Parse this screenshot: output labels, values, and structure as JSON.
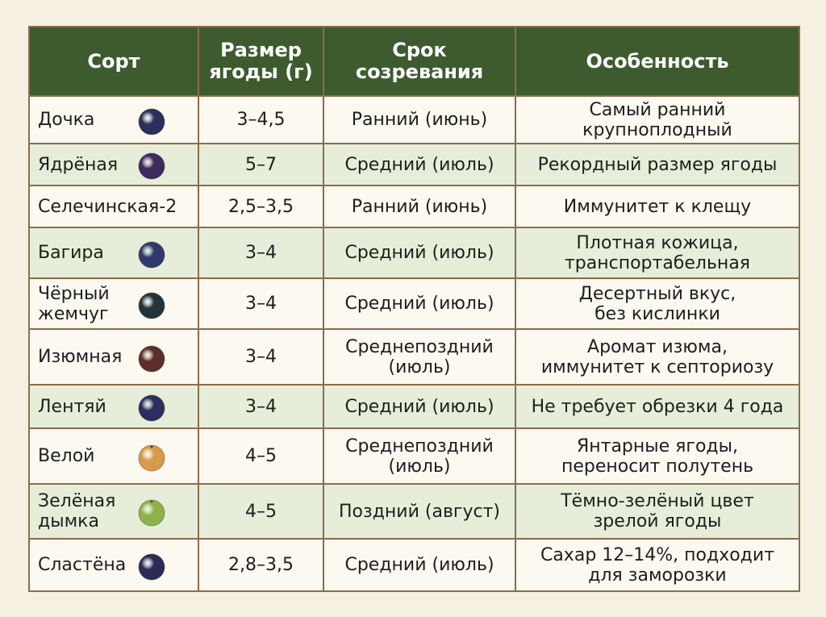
{
  "table": {
    "header": [
      "Сорт",
      "Размер\nягоды (г)",
      "Срок\nсозревания",
      "Особенность"
    ],
    "rows": [
      [
        "Дочка",
        "3–4,5",
        "Ранний (июнь)",
        "Самый ранний\nкрупноплодный"
      ],
      [
        "Ядрёная",
        "5–7",
        "Средний (июль)",
        "Рекордный размер ягоды"
      ],
      [
        "Селечинская-2",
        "2,5–3,5",
        "Ранний (июнь)",
        "Иммунитет к клещу"
      ],
      [
        "Багира",
        "3–4",
        "Средний (июль)",
        "Плотная кожица,\nтранспортабельная"
      ],
      [
        "Чёрный\nжемчуг",
        "3–4",
        "Средний (июль)",
        "Десертный вкус,\nбез кислинки"
      ],
      [
        "Изюмная",
        "3–4",
        "Среднепоздний\n(июль)",
        "Аромат изюма,\nиммунитет к септориозу"
      ],
      [
        "Лентяй",
        "3–4",
        "Средний (июль)",
        "Не требует обрезки 4 года"
      ],
      [
        "Велой",
        "4–5",
        "Среднепоздний\n(июль)",
        "Янтарные ягоды,\nпереносит полутень"
      ],
      [
        "Зелёная\nдымка",
        "4–5",
        "Поздний (август)",
        "Тёмно-зелёный цвет\nзрелой ягоды"
      ],
      [
        "Сластёна",
        "2,8–3,5",
        "Средний (июль)",
        "Сахар 12–14%, подходит\nдля заморозки"
      ]
    ]
  }
}
